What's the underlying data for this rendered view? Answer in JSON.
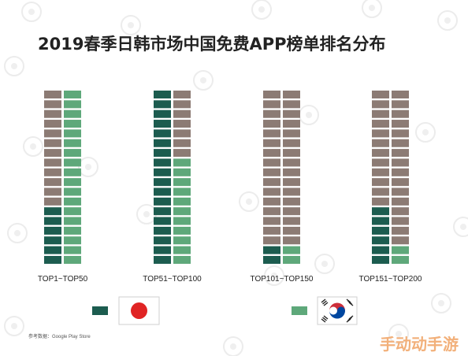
{
  "chart_data": {
    "type": "bar",
    "title": "2019春季日韩市场中国免费APP榜单排名分布",
    "categories": [
      "TOP1~TOP50",
      "TOP51~TOP100",
      "TOP101~TOP150",
      "TOP151~TOP200"
    ],
    "slots_per_column": 18,
    "series": [
      {
        "legend_key": "japan",
        "values": [
          6,
          18,
          2,
          6
        ]
      },
      {
        "legend_key": "korea",
        "values": [
          18,
          11,
          2,
          2
        ]
      }
    ],
    "colors": {
      "japan": "#1c5c4f",
      "korea": "#5ea87a",
      "empty": "#8c7b74"
    },
    "legend": [
      {
        "key": "japan",
        "flag": "japan-flag"
      },
      {
        "key": "korea",
        "flag": "korea-flag"
      }
    ],
    "source": "参考数据：Google Play Store"
  },
  "corner_mark": "手动动手游"
}
